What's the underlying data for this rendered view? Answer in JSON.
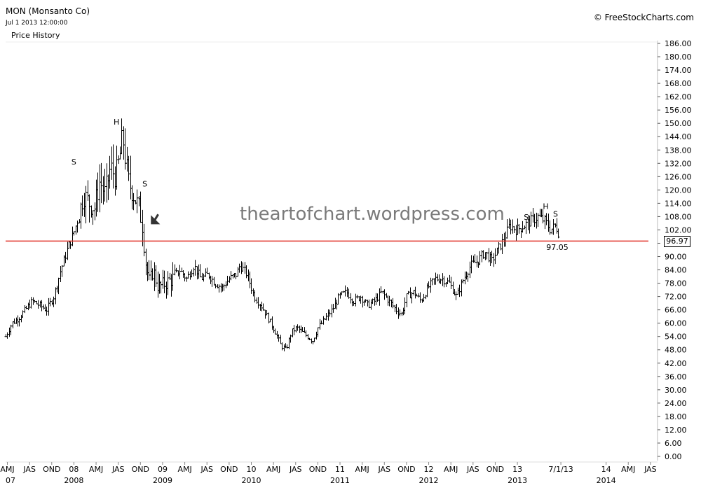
{
  "header": {
    "title": "MON (Monsanto Co)",
    "datetime": "Jul 1 2013 12:00:00",
    "panel_label": "Price History",
    "copyright": "© FreeStockCharts.com"
  },
  "price_box": "96.97",
  "colors": {
    "support_line": "#e0342b",
    "bars": "#000000",
    "watermark": "#7a7a7a"
  },
  "chart_data": {
    "type": "bar",
    "title": "",
    "watermark": "theartofchart.wordpress.com",
    "frequency": "weekly OHLC",
    "ylim": [
      0,
      186
    ],
    "yticks": [
      0,
      6,
      12,
      18,
      24,
      30,
      36,
      42,
      48,
      54,
      60,
      66,
      72,
      78,
      84,
      90,
      96,
      102,
      108,
      114,
      120,
      126,
      132,
      138,
      144,
      150,
      156,
      162,
      168,
      174,
      180,
      186
    ],
    "ytick_labels": [
      "0.00",
      "6.00",
      "12.00",
      "18.00",
      "24.00",
      "30.00",
      "36.00",
      "42.00",
      "48.00",
      "54.00",
      "60.00",
      "66.00",
      "72.00",
      "78.00",
      "84.00",
      "90.00",
      "96.00",
      "102.00",
      "108.00",
      "114.00",
      "120.00",
      "126.00",
      "132.00",
      "138.00",
      "144.00",
      "150.00",
      "156.00",
      "162.00",
      "168.00",
      "174.00",
      "180.00",
      "186.00"
    ],
    "xlim": [
      2007.48,
      2014.83
    ],
    "xticks": [
      {
        "t": 2007.5,
        "label": "AMJ"
      },
      {
        "t": 2007.75,
        "label": "JAS"
      },
      {
        "t": 2008.0,
        "label": "OND"
      },
      {
        "t": 2008.25,
        "label": "08",
        "year": "2008"
      },
      {
        "t": 2008.5,
        "label": "AMJ"
      },
      {
        "t": 2008.75,
        "label": "JAS"
      },
      {
        "t": 2009.0,
        "label": "OND"
      },
      {
        "t": 2009.25,
        "label": "09",
        "year": "2009"
      },
      {
        "t": 2009.5,
        "label": "AMJ"
      },
      {
        "t": 2009.75,
        "label": "JAS"
      },
      {
        "t": 2010.0,
        "label": "OND"
      },
      {
        "t": 2010.25,
        "label": "10",
        "year": "2010"
      },
      {
        "t": 2010.5,
        "label": "AMJ"
      },
      {
        "t": 2010.75,
        "label": "JAS"
      },
      {
        "t": 2011.0,
        "label": "OND"
      },
      {
        "t": 2011.25,
        "label": "11",
        "year": "2011"
      },
      {
        "t": 2011.5,
        "label": "AMJ"
      },
      {
        "t": 2011.75,
        "label": "JAS"
      },
      {
        "t": 2012.0,
        "label": "OND"
      },
      {
        "t": 2012.25,
        "label": "12",
        "year": "2012"
      },
      {
        "t": 2012.5,
        "label": "AMJ"
      },
      {
        "t": 2012.75,
        "label": "JAS"
      },
      {
        "t": 2013.0,
        "label": "OND"
      },
      {
        "t": 2013.25,
        "label": "13",
        "year": "2013"
      },
      {
        "t": 2013.74,
        "label": "7/1/13"
      },
      {
        "t": 2014.25,
        "label": "14",
        "year": "2014"
      },
      {
        "t": 2014.5,
        "label": "AMJ"
      },
      {
        "t": 2014.75,
        "label": "JAS"
      }
    ],
    "year_marker": {
      "t": 2007.48,
      "label": "07"
    },
    "price_path": [
      [
        2007.48,
        54
      ],
      [
        2007.55,
        60
      ],
      [
        2007.62,
        62
      ],
      [
        2007.7,
        66
      ],
      [
        2007.78,
        70
      ],
      [
        2007.86,
        68
      ],
      [
        2007.94,
        66
      ],
      [
        2008.02,
        72
      ],
      [
        2008.1,
        84
      ],
      [
        2008.18,
        94
      ],
      [
        2008.24,
        100
      ],
      [
        2008.3,
        108
      ],
      [
        2008.36,
        118
      ],
      [
        2008.42,
        114
      ],
      [
        2008.48,
        112
      ],
      [
        2008.54,
        124
      ],
      [
        2008.6,
        118
      ],
      [
        2008.66,
        130
      ],
      [
        2008.72,
        126
      ],
      [
        2008.76,
        134
      ],
      [
        2008.8,
        144
      ],
      [
        2008.86,
        124
      ],
      [
        2008.92,
        118
      ],
      [
        2008.98,
        112
      ],
      [
        2009.02,
        104
      ],
      [
        2009.06,
        86
      ],
      [
        2009.1,
        78
      ],
      [
        2009.14,
        84
      ],
      [
        2009.2,
        76
      ],
      [
        2009.28,
        78
      ],
      [
        2009.36,
        80
      ],
      [
        2009.44,
        84
      ],
      [
        2009.52,
        80
      ],
      [
        2009.6,
        86
      ],
      [
        2009.68,
        80
      ],
      [
        2009.76,
        82
      ],
      [
        2009.84,
        78
      ],
      [
        2009.92,
        76
      ],
      [
        2010.0,
        80
      ],
      [
        2010.08,
        82
      ],
      [
        2010.12,
        86
      ],
      [
        2010.2,
        82
      ],
      [
        2010.28,
        72
      ],
      [
        2010.36,
        68
      ],
      [
        2010.44,
        62
      ],
      [
        2010.52,
        56
      ],
      [
        2010.58,
        50
      ],
      [
        2010.64,
        48
      ],
      [
        2010.7,
        56
      ],
      [
        2010.76,
        58
      ],
      [
        2010.82,
        56
      ],
      [
        2010.88,
        54
      ],
      [
        2010.94,
        52
      ],
      [
        2011.0,
        58
      ],
      [
        2011.08,
        62
      ],
      [
        2011.16,
        66
      ],
      [
        2011.24,
        72
      ],
      [
        2011.32,
        74
      ],
      [
        2011.4,
        70
      ],
      [
        2011.48,
        72
      ],
      [
        2011.56,
        68
      ],
      [
        2011.64,
        70
      ],
      [
        2011.72,
        74
      ],
      [
        2011.8,
        70
      ],
      [
        2011.88,
        66
      ],
      [
        2011.94,
        64
      ],
      [
        2012.0,
        72
      ],
      [
        2012.08,
        74
      ],
      [
        2012.16,
        70
      ],
      [
        2012.24,
        76
      ],
      [
        2012.32,
        80
      ],
      [
        2012.4,
        80
      ],
      [
        2012.48,
        78
      ],
      [
        2012.56,
        72
      ],
      [
        2012.64,
        80
      ],
      [
        2012.72,
        86
      ],
      [
        2012.8,
        88
      ],
      [
        2012.88,
        92
      ],
      [
        2012.96,
        88
      ],
      [
        2013.04,
        94
      ],
      [
        2013.1,
        98
      ],
      [
        2013.16,
        104
      ],
      [
        2013.24,
        102
      ],
      [
        2013.32,
        104
      ],
      [
        2013.4,
        106
      ],
      [
        2013.48,
        108
      ],
      [
        2013.56,
        106
      ],
      [
        2013.62,
        102
      ],
      [
        2013.68,
        104
      ],
      [
        2013.72,
        100
      ]
    ],
    "horizontal_line": {
      "y": 96.97,
      "price_label": "96.97"
    },
    "annotations": [
      {
        "text": "S",
        "t": 2008.25,
        "y": 131.5
      },
      {
        "text": "H",
        "t": 2008.73,
        "y": 149.5
      },
      {
        "text": "S",
        "t": 2009.05,
        "y": 121.5
      },
      {
        "text": "S",
        "t": 2013.35,
        "y": 106.5
      },
      {
        "text": "H",
        "t": 2013.57,
        "y": 111.5
      },
      {
        "text": "S",
        "t": 2013.68,
        "y": 108
      },
      {
        "text": "97.05",
        "t": 2013.7,
        "y": 93
      }
    ],
    "arrow": {
      "t1": 2009.2,
      "y1": 109,
      "t2": 2009.13,
      "y2": 105
    }
  }
}
